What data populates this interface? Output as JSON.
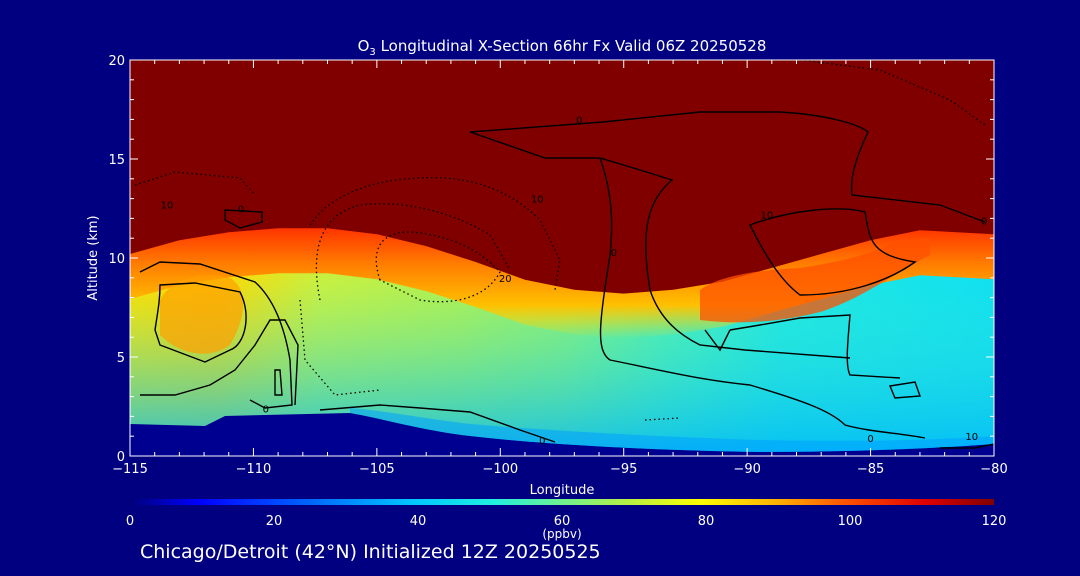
{
  "chart_data": {
    "type": "heatmap",
    "title_prefix": "O",
    "title_sub": "3",
    "title_rest": " Longitudinal X-Section 66hr  Fx Valid 06Z 20250528",
    "xlabel": "Longitude",
    "ylabel": "Altitude (km)",
    "xlim": [
      -115,
      -80
    ],
    "ylim": [
      0,
      20
    ],
    "x_ticks": [
      -115,
      -110,
      -105,
      -100,
      -95,
      -90,
      -85,
      -80
    ],
    "x_tick_labels": [
      "−115",
      "−110",
      "−105",
      "−100",
      "−95",
      "−90",
      "−85",
      "−80"
    ],
    "y_ticks": [
      0,
      5,
      10,
      15,
      20
    ],
    "y_tick_labels": [
      "0",
      "5",
      "10",
      "15",
      "20"
    ],
    "colorbar": {
      "min": 0,
      "max": 120,
      "ticks": [
        0,
        20,
        40,
        60,
        80,
        100,
        120
      ],
      "tick_labels": [
        "0",
        "20",
        "40",
        "60",
        "80",
        "100",
        "120"
      ],
      "unit_label": "(ppbv)"
    },
    "tropopause_km": [
      [
        -115,
        10.2
      ],
      [
        -113,
        10.9
      ],
      [
        -111,
        11.3
      ],
      [
        -109,
        11.5
      ],
      [
        -107,
        11.5
      ],
      [
        -105,
        11.2
      ],
      [
        -103,
        10.6
      ],
      [
        -101,
        9.8
      ],
      [
        -99,
        8.9
      ],
      [
        -97,
        8.4
      ],
      [
        -95,
        8.2
      ],
      [
        -93,
        8.4
      ],
      [
        -91,
        8.8
      ],
      [
        -89,
        9.5
      ],
      [
        -87,
        10.2
      ],
      [
        -85,
        10.9
      ],
      [
        -83,
        11.4
      ],
      [
        -80,
        11.2
      ]
    ],
    "contour_labels": [
      {
        "x": -113.5,
        "y": 12.5,
        "text": "10"
      },
      {
        "x": -110.5,
        "y": 12.3,
        "text": "0"
      },
      {
        "x": -109.5,
        "y": 2.2,
        "text": "0"
      },
      {
        "x": -98.5,
        "y": 12.8,
        "text": "10"
      },
      {
        "x": -99.8,
        "y": 8.8,
        "text": "20"
      },
      {
        "x": -96.8,
        "y": 16.8,
        "text": "0"
      },
      {
        "x": -95.4,
        "y": 10.1,
        "text": "0"
      },
      {
        "x": -89.2,
        "y": 12.0,
        "text": "10"
      },
      {
        "x": -98.3,
        "y": 0.6,
        "text": "0"
      },
      {
        "x": -85.0,
        "y": 0.7,
        "text": "0"
      },
      {
        "x": -80.9,
        "y": 0.8,
        "text": "10"
      },
      {
        "x": -80.4,
        "y": 11.7,
        "text": "0"
      }
    ],
    "footer": "Chicago/Detroit (42°N) Initialized 12Z 20250525"
  }
}
